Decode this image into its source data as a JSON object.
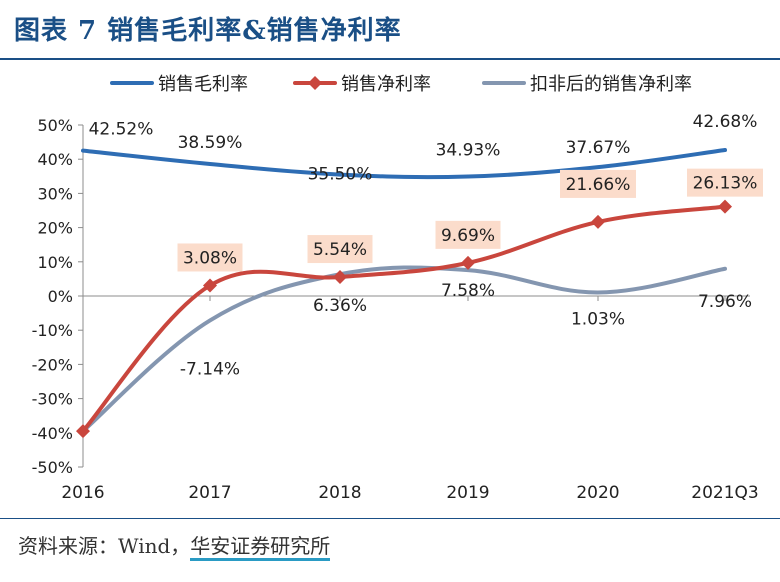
{
  "title": "图表 7 销售毛利率&销售净利率",
  "source": {
    "prefix": "资料来源：Wind，",
    "org": "华安证券研究所"
  },
  "chart_data": {
    "type": "line",
    "categories": [
      "2016",
      "2017",
      "2018",
      "2019",
      "2020",
      "2021Q3"
    ],
    "ylim": [
      -50,
      50
    ],
    "yticks": [
      50,
      40,
      30,
      20,
      10,
      0,
      -10,
      -20,
      -30,
      -40,
      -50
    ],
    "ytick_labels": [
      "50%",
      "40%",
      "30%",
      "20%",
      "10%",
      "0%",
      "-10%",
      "-20%",
      "-30%",
      "-40%",
      "-50%"
    ],
    "legend_position": "top",
    "series": [
      {
        "name": "销售毛利率",
        "values": [
          42.52,
          38.59,
          35.5,
          34.93,
          37.67,
          42.68
        ],
        "labels": [
          "42.52%",
          "38.59%",
          "35.50%",
          "34.93%",
          "37.67%",
          "42.68%"
        ],
        "color": "#2e6db4",
        "marker": "none"
      },
      {
        "name": "销售净利率",
        "values": [
          -39.5,
          3.08,
          5.54,
          9.69,
          21.66,
          26.13
        ],
        "labels": [
          "",
          "3.08%",
          "5.54%",
          "9.69%",
          "21.66%",
          "26.13%"
        ],
        "color": "#c9463d",
        "marker": "diamond",
        "label_bg": "#fbdccb"
      },
      {
        "name": "扣非后的销售净利率",
        "values": [
          -39.5,
          -7.14,
          6.36,
          7.58,
          1.03,
          7.96
        ],
        "labels": [
          "",
          "-7.14%",
          "6.36%",
          "7.58%",
          "1.03%",
          "7.96%"
        ],
        "color": "#8496b0",
        "marker": "none"
      }
    ]
  }
}
